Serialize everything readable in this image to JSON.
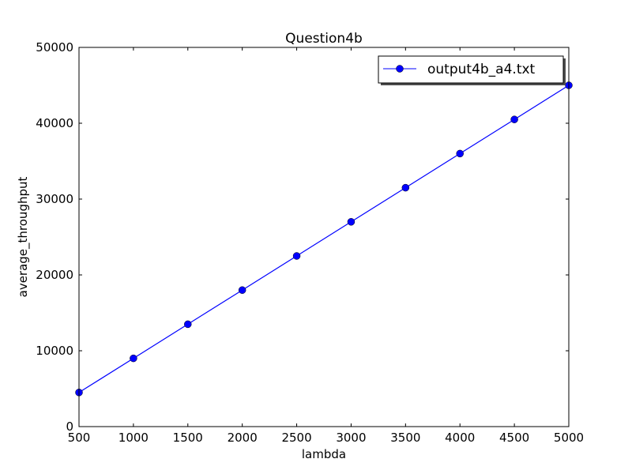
{
  "chart_data": {
    "type": "line",
    "title": "Question4b",
    "xlabel": "lambda",
    "ylabel": "average_throughput",
    "xlim": [
      500,
      5000
    ],
    "ylim": [
      0,
      50000
    ],
    "xticks": [
      500,
      1000,
      1500,
      2000,
      2500,
      3000,
      3500,
      4000,
      4500,
      5000
    ],
    "yticks": [
      0,
      10000,
      20000,
      30000,
      40000,
      50000
    ],
    "grid": false,
    "legend_position": "top-right",
    "series": [
      {
        "name": "output4b_a4.txt",
        "color": "#0000ff",
        "marker": "circle",
        "x": [
          500,
          1000,
          1500,
          2000,
          2500,
          3000,
          3500,
          4000,
          4500,
          5000
        ],
        "y": [
          4500,
          9000,
          13500,
          18000,
          22500,
          27000,
          31500,
          36000,
          40500,
          45000
        ]
      }
    ]
  }
}
